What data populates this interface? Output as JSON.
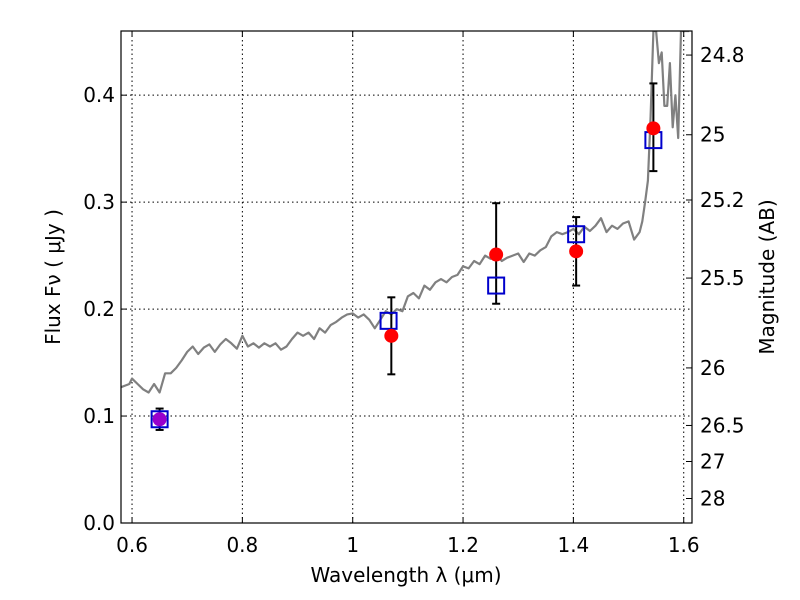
{
  "chart_data": {
    "type": "scatter",
    "xlabel": "Wavelength  λ (μm)",
    "ylabel": "Flux  Fν  ( μJy )",
    "y2label": "Magnitude (AB)",
    "xlim": [
      0.58,
      1.615
    ],
    "ylim": [
      0.0,
      0.46
    ],
    "x_ticks": [
      0.6,
      0.8,
      1.0,
      1.2,
      1.4,
      1.6
    ],
    "x_tick_labels": [
      "0.6",
      "0.8",
      "1",
      "1.2",
      "1.4",
      "1.6"
    ],
    "y_ticks": [
      0.0,
      0.1,
      0.2,
      0.3,
      0.4
    ],
    "y_tick_labels": [
      "0.0",
      "0.1",
      "0.2",
      "0.3",
      "0.4"
    ],
    "y2_ticks": [
      {
        "label": "24.8",
        "flux": 0.4375
      },
      {
        "label": "25",
        "flux": 0.363
      },
      {
        "label": "25.2",
        "flux": 0.302
      },
      {
        "label": "25.5",
        "flux": 0.229
      },
      {
        "label": "26",
        "flux": 0.145
      },
      {
        "label": "26.5",
        "flux": 0.0912
      },
      {
        "label": "27",
        "flux": 0.0575
      },
      {
        "label": "28",
        "flux": 0.0229
      }
    ],
    "grid": true,
    "series": [
      {
        "kind": "spectrum-line",
        "color": "#808080",
        "x": [
          0.58,
          0.595,
          0.6,
          0.61,
          0.62,
          0.63,
          0.64,
          0.65,
          0.66,
          0.67,
          0.68,
          0.69,
          0.7,
          0.71,
          0.72,
          0.73,
          0.74,
          0.75,
          0.76,
          0.77,
          0.78,
          0.79,
          0.8,
          0.81,
          0.82,
          0.83,
          0.84,
          0.85,
          0.86,
          0.87,
          0.88,
          0.89,
          0.9,
          0.91,
          0.92,
          0.93,
          0.94,
          0.95,
          0.96,
          0.97,
          0.98,
          0.99,
          1.0,
          1.01,
          1.02,
          1.03,
          1.04,
          1.05,
          1.06,
          1.07,
          1.08,
          1.09,
          1.1,
          1.11,
          1.12,
          1.13,
          1.14,
          1.15,
          1.16,
          1.17,
          1.18,
          1.19,
          1.2,
          1.21,
          1.22,
          1.23,
          1.24,
          1.25,
          1.26,
          1.27,
          1.28,
          1.29,
          1.3,
          1.31,
          1.32,
          1.33,
          1.34,
          1.35,
          1.36,
          1.37,
          1.38,
          1.39,
          1.4,
          1.41,
          1.42,
          1.43,
          1.44,
          1.45,
          1.46,
          1.47,
          1.48,
          1.49,
          1.5,
          1.51,
          1.52,
          1.525,
          1.53,
          1.535,
          1.54,
          1.545,
          1.55,
          1.555,
          1.56,
          1.565,
          1.57,
          1.575,
          1.58,
          1.585,
          1.59,
          1.595,
          1.6,
          1.605,
          1.61
        ],
        "y": [
          0.127,
          0.13,
          0.135,
          0.13,
          0.125,
          0.122,
          0.13,
          0.122,
          0.14,
          0.14,
          0.145,
          0.152,
          0.16,
          0.165,
          0.158,
          0.164,
          0.167,
          0.16,
          0.167,
          0.172,
          0.168,
          0.163,
          0.175,
          0.165,
          0.168,
          0.164,
          0.168,
          0.165,
          0.168,
          0.162,
          0.165,
          0.172,
          0.178,
          0.175,
          0.178,
          0.172,
          0.182,
          0.178,
          0.185,
          0.188,
          0.192,
          0.195,
          0.196,
          0.192,
          0.195,
          0.19,
          0.182,
          0.19,
          0.198,
          0.195,
          0.2,
          0.198,
          0.212,
          0.215,
          0.21,
          0.222,
          0.218,
          0.225,
          0.228,
          0.225,
          0.23,
          0.232,
          0.24,
          0.238,
          0.245,
          0.242,
          0.25,
          0.247,
          0.252,
          0.245,
          0.248,
          0.25,
          0.252,
          0.244,
          0.252,
          0.25,
          0.255,
          0.258,
          0.268,
          0.272,
          0.27,
          0.272,
          0.275,
          0.27,
          0.277,
          0.273,
          0.278,
          0.285,
          0.272,
          0.278,
          0.275,
          0.28,
          0.282,
          0.265,
          0.272,
          0.282,
          0.3,
          0.32,
          0.38,
          0.46,
          0.46,
          0.43,
          0.44,
          0.39,
          0.39,
          0.43,
          0.37,
          0.4,
          0.36,
          0.46,
          0.46,
          0.46,
          0.46
        ]
      },
      {
        "kind": "model-photometry",
        "marker": "open-square",
        "color": "#0000cc",
        "x": [
          0.65,
          1.065,
          1.26,
          1.405,
          1.545
        ],
        "y": [
          0.097,
          0.189,
          0.222,
          0.27,
          0.358
        ]
      },
      {
        "kind": "observed-photometry",
        "marker": "filled-circle",
        "color": "#ff0000",
        "x": [
          0.65,
          1.07,
          1.26,
          1.405,
          1.545
        ],
        "y": [
          0.097,
          0.175,
          0.251,
          0.254,
          0.369
        ],
        "yerr_low": [
          0.01,
          0.036,
          0.046,
          0.032,
          0.04
        ],
        "yerr_high": [
          0.01,
          0.036,
          0.048,
          0.032,
          0.042
        ],
        "point_colors": [
          "#9900cc",
          "#ff0000",
          "#ff0000",
          "#ff0000",
          "#ff0000"
        ]
      }
    ]
  }
}
